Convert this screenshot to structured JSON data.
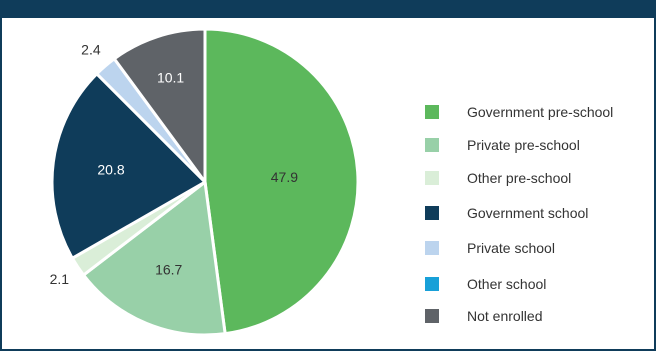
{
  "chart_data": {
    "type": "pie",
    "title": "",
    "categories": [
      "Government pre-school",
      "Private pre-school",
      "Other pre-school",
      "Government school",
      "Private school",
      "Other school",
      "Not enrolled"
    ],
    "values": [
      47.9,
      16.7,
      2.1,
      20.8,
      2.4,
      0.0,
      10.1
    ],
    "value_labels": [
      "47.9",
      "16.7",
      "2.1",
      "20.8",
      "2.4",
      "",
      "10.1"
    ],
    "colors": [
      "#5cb85c",
      "#98d0a8",
      "#daeed8",
      "#0f3c5a",
      "#bcd4ee",
      "#18a0d8",
      "#5f6368"
    ],
    "legend_position": "right"
  }
}
